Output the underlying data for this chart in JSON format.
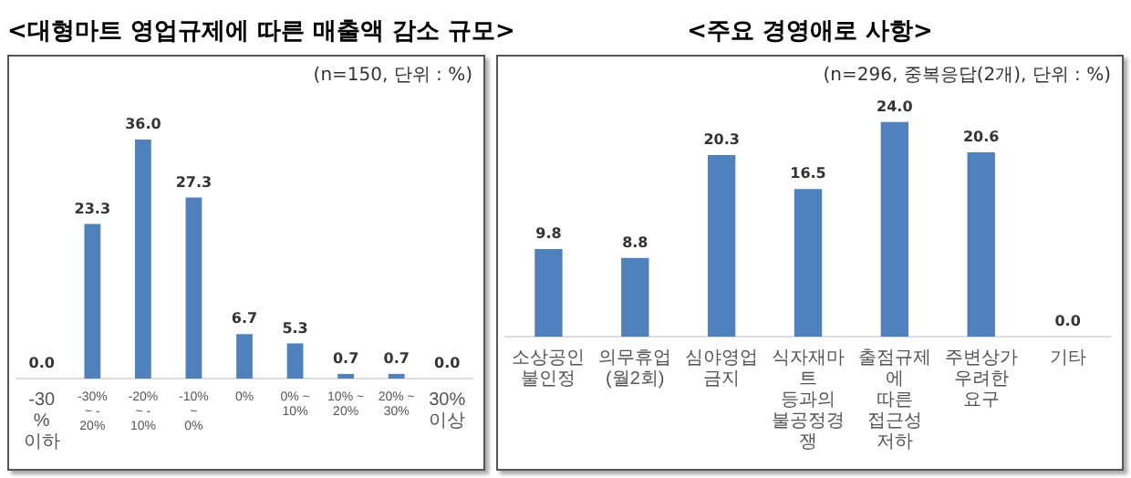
{
  "chart_data": [
    {
      "type": "bar",
      "title": "<대형마트 영업규제에 따른 매출액 감소 규모>",
      "subtitle": "(n=150, 단위 : %)",
      "categories": [
        "-30%\n이하",
        "-30% ~ -\n20%",
        "-20% ~ -\n10%",
        "-10% ~\n0%",
        "0%",
        "0% ~ 10%",
        "10% ~\n20%",
        "20% ~\n30%",
        "30%\n이상"
      ],
      "values": [
        0.0,
        23.3,
        36.0,
        27.3,
        6.7,
        5.3,
        0.7,
        0.7,
        0.0
      ],
      "value_labels": [
        "0.0",
        "23.3",
        "36.0",
        "27.3",
        "6.7",
        "5.3",
        "0.7",
        "0.7",
        "0.0"
      ],
      "color": "#4f81bd",
      "grid": false,
      "legend": false,
      "tick_labels": "x"
    },
    {
      "type": "bar",
      "title": "<주요 경영애로 사항>",
      "subtitle": "(n=296, 중복응답(2개), 단위 : %)",
      "categories": [
        "소상공인\n불인정",
        "의무휴업(월2회)",
        "심야영업금지",
        "식자재마트\n등과의\n불공정경쟁",
        "출점규제에\n따른 접근성\n저하",
        "주변상가\n우려한 요구",
        "기타"
      ],
      "values": [
        9.8,
        8.8,
        20.3,
        16.5,
        24.0,
        20.6,
        0.0
      ],
      "value_labels": [
        "9.8",
        "8.8",
        "20.3",
        "16.5",
        "24.0",
        "20.6",
        "0.0"
      ],
      "color": "#4f81bd",
      "grid": false,
      "legend": false,
      "tick_labels": "x"
    }
  ]
}
